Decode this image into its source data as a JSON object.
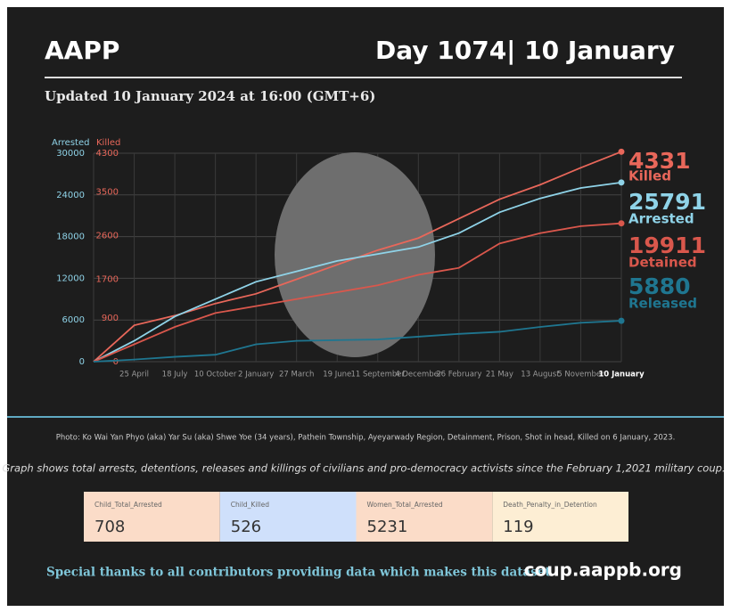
{
  "header": {
    "brand": "AAPP",
    "day": "Day 1074| 10 January",
    "updated": "Updated 10 January 2024 at 16:00 (GMT+6)"
  },
  "chart_data": {
    "type": "line",
    "ylabel": "Arrested",
    "y2label": "Killed",
    "categories": [
      null,
      "25 April",
      "18 July",
      "10 October",
      "2 January",
      "27 March",
      "19 June",
      "11 September",
      "4 December",
      "26 February",
      "21 May",
      "13 August",
      "5 November",
      "10 January"
    ],
    "ylim": [
      0,
      30000
    ],
    "yticks": [
      0,
      6000,
      12000,
      18000,
      24000,
      30000
    ],
    "y2lim": [
      0,
      4300
    ],
    "y2ticks": [
      0,
      900,
      1700,
      2600,
      3500,
      4300
    ],
    "grid": true,
    "series": [
      {
        "name": "Killed",
        "color": "#e8675a",
        "axis": "y2",
        "values": [
          0,
          750,
          950,
          1200,
          1400,
          1700,
          2000,
          2300,
          2550,
          2950,
          3350,
          3650,
          4000,
          4331
        ]
      },
      {
        "name": "Arrested",
        "color": "#8fd3e8",
        "values": [
          0,
          3000,
          6500,
          9000,
          11500,
          13000,
          14500,
          15500,
          16500,
          18500,
          21500,
          23500,
          25000,
          25791
        ]
      },
      {
        "name": "Detained",
        "color": "#d9574c",
        "values": [
          0,
          2500,
          5000,
          7000,
          8000,
          9000,
          10000,
          11000,
          12500,
          13500,
          17000,
          18500,
          19500,
          19911
        ]
      },
      {
        "name": "Released",
        "color": "#1f7690",
        "values": [
          0,
          300,
          700,
          1000,
          2500,
          3000,
          3100,
          3200,
          3600,
          4000,
          4300,
          5000,
          5600,
          5880
        ]
      }
    ]
  },
  "photo_caption": "Photo: Ko Wai Yan Phyo (aka) Yar Su (aka) Shwe Yoe (34 years), Pathein Township, Ayeyarwady Region, Detainment, Prison, Shot in head, Killed on 6 January, 2023.",
  "graph_caption": "Graph shows total arrests, detentions, releases and killings of civilians and pro-democracy activists since the February 1,2021 military coup.",
  "stats": [
    {
      "label": "Child_Total_Arrested",
      "value": "708"
    },
    {
      "label": "Child_Killed",
      "value": "526"
    },
    {
      "label": "Women_Total_Arrested",
      "value": "5231"
    },
    {
      "label": "Death_Penalty_in_Detention",
      "value": "119"
    }
  ],
  "footer": {
    "thanks": "Special thanks to all contributors providing data which makes this dataset.",
    "site": "coup.aappb.org"
  }
}
